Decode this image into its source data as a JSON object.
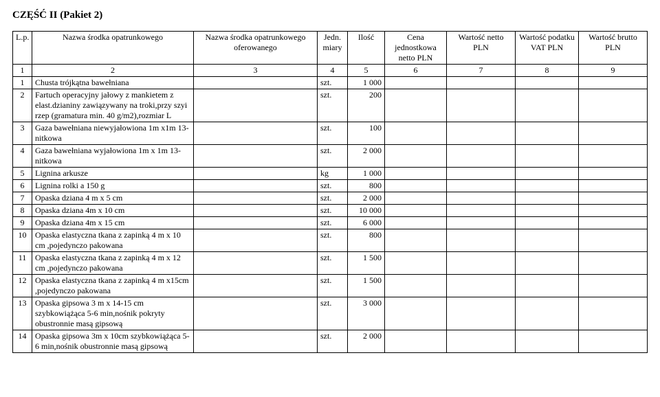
{
  "section_title": "CZĘŚĆ  II   (Pakiet 2)",
  "headers": {
    "lp": "L.p.",
    "name": "Nazwa środka opatrunkowego",
    "offered": "Nazwa środka opatrunkowego oferowanego",
    "jm": "Jedn. miary",
    "qty": "Ilość",
    "cena": "Cena jednostkowa netto PLN",
    "wn": "Wartość netto PLN",
    "vat": "Wartość podatku VAT PLN",
    "wb": "Wartość brutto PLN"
  },
  "numrow": [
    "1",
    "2",
    "3",
    "4",
    "5",
    "6",
    "7",
    "8",
    "9"
  ],
  "rows": [
    {
      "lp": "1",
      "name": "Chusta trójkątna bawełniana",
      "jm": "szt.",
      "qty": "1 000"
    },
    {
      "lp": "2",
      "name": "Fartuch operacyjny jałowy z mankietem z elast.dzianiny zawiązywany na troki,przy szyi rzep (gramatura min. 40 g/m2),rozmiar L",
      "jm": "szt.",
      "qty": "200"
    },
    {
      "lp": "3",
      "name": "Gaza bawełniana niewyjałowiona 1m x1m 13-nitkowa",
      "jm": "szt.",
      "qty": "100"
    },
    {
      "lp": "4",
      "name": "Gaza bawełniana wyjałowiona 1m x 1m 13-nitkowa",
      "jm": "szt.",
      "qty": "2 000"
    },
    {
      "lp": "5",
      "name": "Lignina arkusze",
      "jm": "kg",
      "qty": "1 000"
    },
    {
      "lp": "6",
      "name": "Lignina rolki a 150 g",
      "jm": "szt.",
      "qty": "800"
    },
    {
      "lp": "7",
      "name": "Opaska dziana 4 m x 5 cm",
      "jm": "szt.",
      "qty": "2 000"
    },
    {
      "lp": "8",
      "name": "Opaska dziana 4m x 10 cm",
      "jm": "szt.",
      "qty": "10 000"
    },
    {
      "lp": "9",
      "name": "Opaska dziana 4m x 15 cm",
      "jm": "szt.",
      "qty": "6 000"
    },
    {
      "lp": "10",
      "name": "Opaska elastyczna tkana z zapinką 4 m x 10 cm ,pojedynczo pakowana",
      "jm": "szt.",
      "qty": "800"
    },
    {
      "lp": "11",
      "name": "Opaska elastyczna tkana z zapinką 4 m x 12 cm ,pojedynczo pakowana",
      "jm": "szt.",
      "qty": "1 500"
    },
    {
      "lp": "12",
      "name": "Opaska elastyczna tkana z zapinką 4 m x15cm ,pojedynczo pakowana",
      "jm": "szt.",
      "qty": "1 500"
    },
    {
      "lp": "13",
      "name": "Opaska gipsowa 3 m x 14-15 cm szybkowiążąca 5-6 min,nośnik pokryty obustronnie masą gipsową",
      "jm": "szt.",
      "qty": "3 000"
    },
    {
      "lp": "14",
      "name": "Opaska gipsowa 3m x 10cm szybkowiążąca 5-6 min,nośnik obustronnie masą gipsową",
      "jm": "szt.",
      "qty": "2 000"
    }
  ]
}
